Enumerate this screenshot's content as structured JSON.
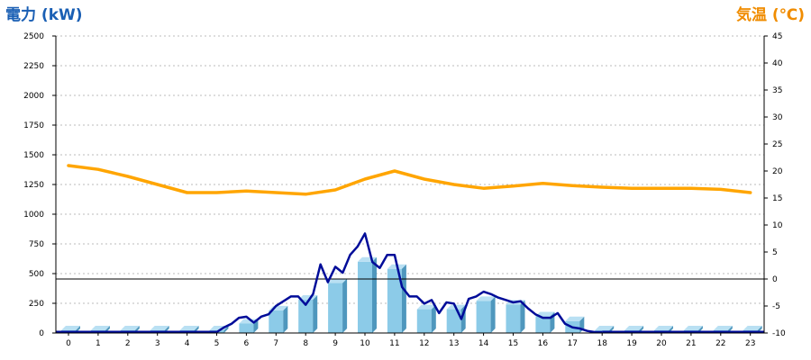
{
  "chart_data": {
    "type": "bar",
    "left_axis_title": "電力 (kW)",
    "right_axis_title": "気温 (℃)",
    "colors": {
      "left_title": "#1a5fb4",
      "right_title": "#f08c00",
      "bar": "#8ccbe8",
      "bar_side": "#4f97bd",
      "bar_top": "#b9e0f3",
      "power_line": "#000c99",
      "temp_line": "#ffa500",
      "zero_line": "#000000"
    },
    "categories": [
      "0",
      "1",
      "2",
      "3",
      "4",
      "5",
      "6",
      "7",
      "8",
      "9",
      "10",
      "11",
      "12",
      "13",
      "14",
      "15",
      "16",
      "17",
      "18",
      "19",
      "20",
      "21",
      "22",
      "23"
    ],
    "left_axis": {
      "min": 0,
      "max": 2500,
      "ticks": [
        "0",
        "250",
        "500",
        "750",
        "1000",
        "1250",
        "1500",
        "1750",
        "2000",
        "2250",
        "2500"
      ]
    },
    "right_axis": {
      "min": -10,
      "max": 45,
      "ticks": [
        "-10",
        "-5",
        "0",
        "5",
        "10",
        "15",
        "20",
        "25",
        "30",
        "35",
        "40",
        "45"
      ]
    },
    "grid": true,
    "series": [
      {
        "kind": "bar",
        "axis": "left",
        "values": [
          0,
          0,
          0,
          0,
          0,
          0,
          80,
          190,
          280,
          420,
          600,
          540,
          200,
          200,
          270,
          240,
          140,
          100,
          0,
          0,
          0,
          0,
          0,
          0
        ]
      },
      {
        "kind": "line",
        "axis": "left",
        "x": [
          5,
          5.25,
          5.5,
          5.75,
          6,
          6.25,
          6.5,
          6.75,
          7,
          7.25,
          7.5,
          7.75,
          8,
          8.25,
          8.5,
          8.75,
          9,
          9.25,
          9.5,
          9.75,
          10,
          10.25,
          10.5,
          10.75,
          11,
          11.25,
          11.5,
          11.75,
          12,
          12.25,
          12.5,
          12.75,
          13,
          13.25,
          13.5,
          13.75,
          14,
          14.25,
          14.5,
          14.75,
          15,
          15.25,
          15.5,
          15.75,
          16,
          16.25,
          16.5,
          16.75,
          17,
          17.25,
          17.5,
          17.75,
          18
        ],
        "values": [
          0,
          40,
          70,
          120,
          130,
          80,
          130,
          150,
          220,
          260,
          300,
          300,
          230,
          320,
          570,
          420,
          550,
          500,
          650,
          720,
          830,
          590,
          540,
          650,
          650,
          380,
          300,
          300,
          240,
          270,
          160,
          250,
          240,
          110,
          280,
          300,
          340,
          320,
          290,
          270,
          250,
          260,
          200,
          150,
          120,
          120,
          160,
          70,
          40,
          30,
          10,
          0,
          0
        ]
      },
      {
        "kind": "line",
        "axis": "right",
        "x": [
          0,
          1,
          2,
          3,
          4,
          5,
          6,
          7,
          8,
          9,
          10,
          11,
          12,
          13,
          14,
          15,
          16,
          17,
          18,
          19,
          20,
          21,
          22,
          23
        ],
        "values": [
          21,
          20.3,
          19,
          17.5,
          16,
          16,
          16.3,
          16,
          15.7,
          16.5,
          18.5,
          20,
          18.5,
          17.5,
          16.8,
          17.2,
          17.7,
          17.3,
          17,
          16.8,
          16.8,
          16.8,
          16.6,
          16
        ]
      }
    ],
    "reference_line": {
      "axis": "right",
      "value": 0
    }
  }
}
